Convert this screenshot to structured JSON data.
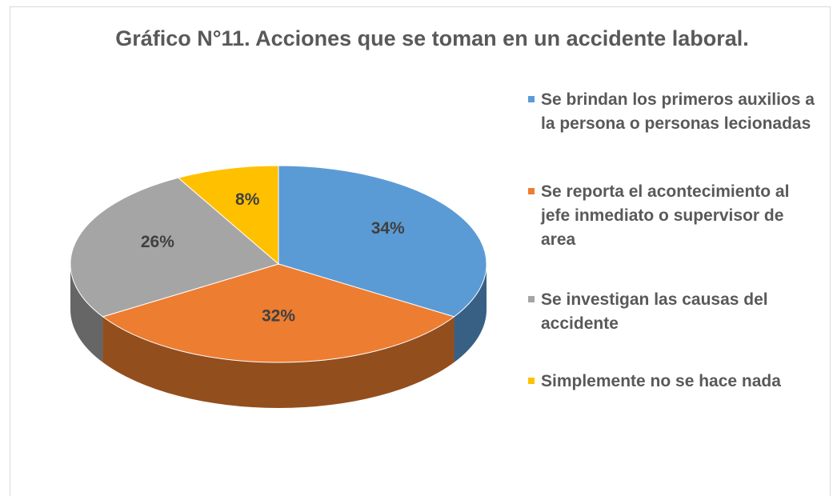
{
  "chart_data": {
    "type": "pie3d",
    "title": "Gráfico N°11. Acciones que se toman en un accidente laboral.",
    "categories": [
      "Se brindan los primeros auxilios a la persona o personas lecionadas",
      "Se reporta el acontecimiento al jefe inmediato o supervisor de area",
      "Se investigan las causas del accidente",
      "Simplemente no se hace nada"
    ],
    "values": [
      34,
      32,
      26,
      8
    ],
    "value_labels": [
      "34%",
      "32%",
      "26%",
      "8%"
    ],
    "colors": [
      "#5b9bd5",
      "#ed7d31",
      "#a5a5a5",
      "#ffc000"
    ],
    "legend": "right"
  }
}
